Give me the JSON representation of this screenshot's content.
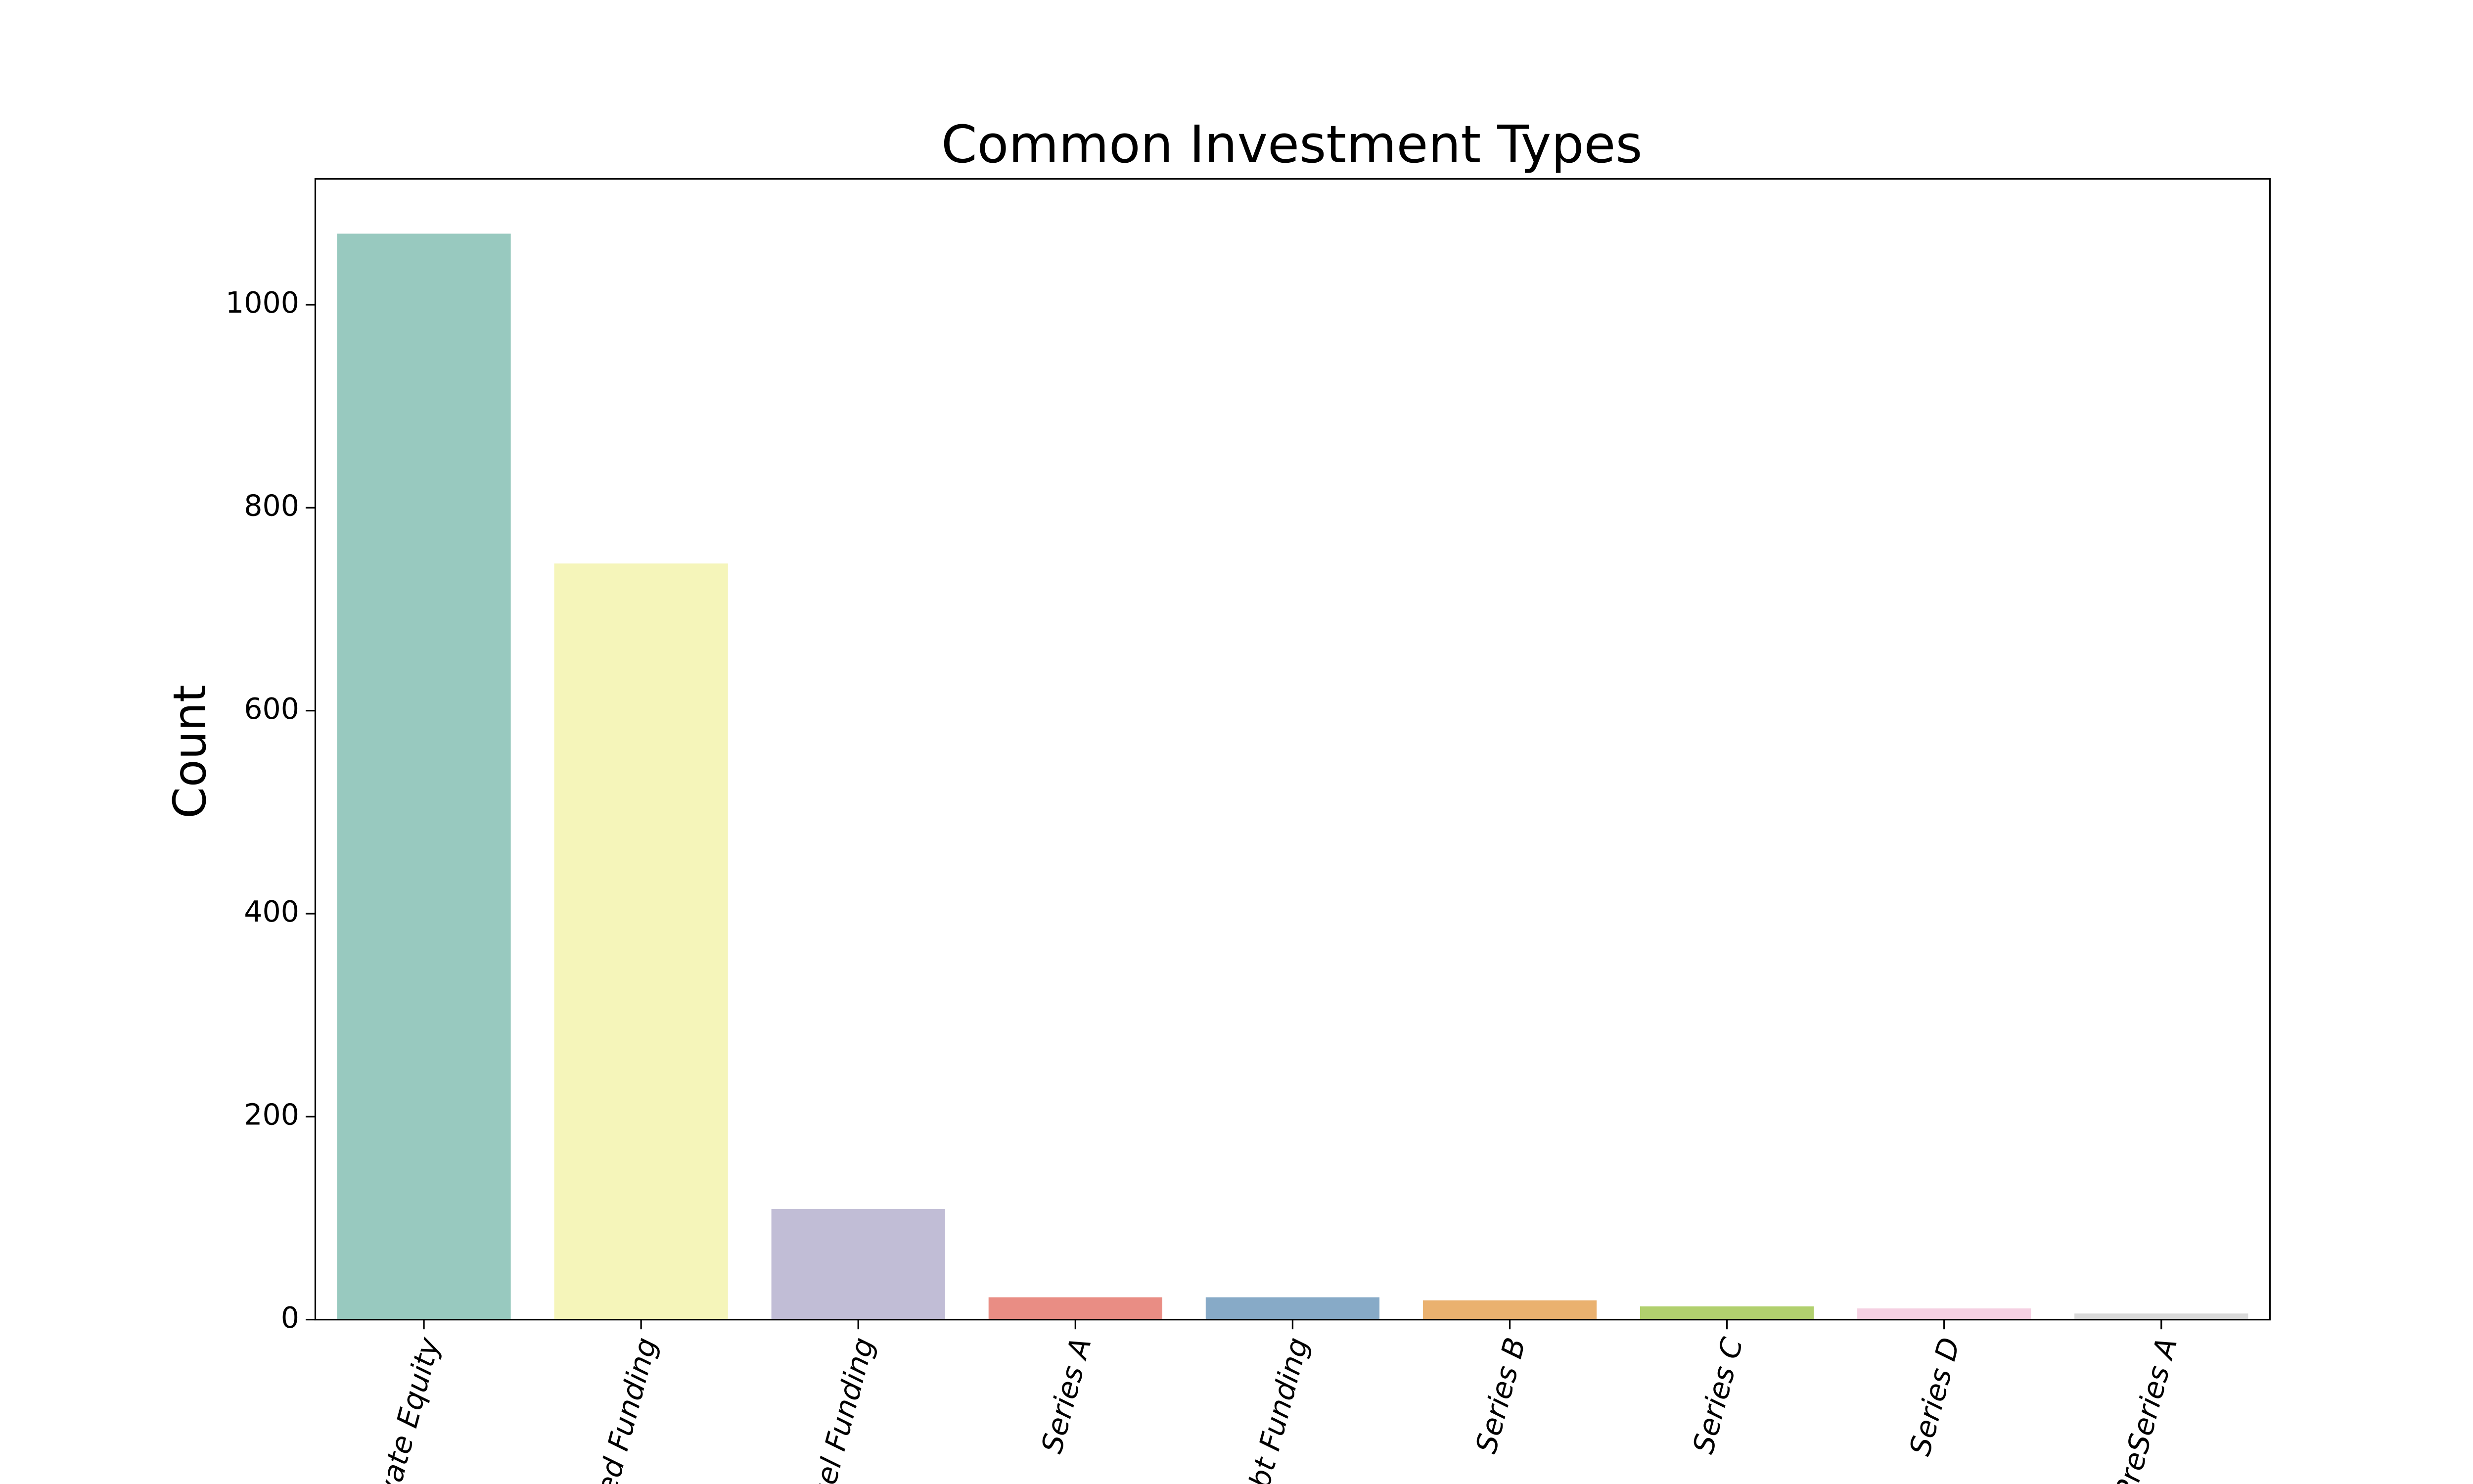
{
  "chart_data": {
    "type": "bar",
    "title": "Common Investment Types",
    "y_label": "Count",
    "categories": [
      "Private Equity",
      "Seed Funding",
      "Angel Funding",
      "Series A",
      "Debt Funding",
      "Series B",
      "Series C",
      "Series D",
      "PreSeries A"
    ],
    "values": [
      1070,
      745,
      109,
      22,
      22,
      19,
      13,
      11,
      6
    ],
    "colors": [
      "#98c9bf",
      "#f5f5ba",
      "#c1bdd6",
      "#e98d84",
      "#87aac7",
      "#eab16f",
      "#b1d06e",
      "#f5d0e2",
      "#d9d9d9"
    ],
    "ylim": [
      0,
      1124
    ],
    "yticks": [
      0,
      200,
      400,
      600,
      800,
      1000
    ]
  }
}
